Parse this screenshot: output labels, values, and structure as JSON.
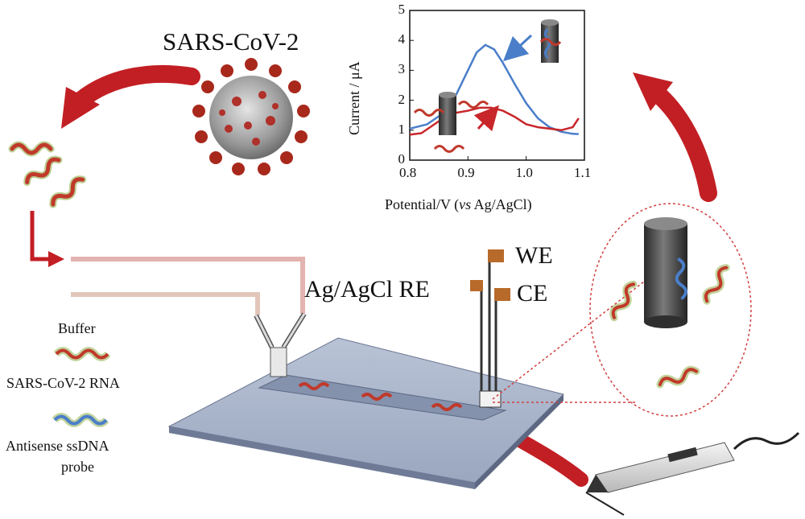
{
  "labels": {
    "virus": "SARS-CoV-2",
    "we": "WE",
    "ce": "CE",
    "re": "Ag/AgCl RE",
    "buffer": "Buffer",
    "rna": "SARS-CoV-2 RNA",
    "probe_line1": "Antisense ssDNA",
    "probe_line2": "probe"
  },
  "colors": {
    "arrow": "#c21f24",
    "blue_trace": "#4a7ec9",
    "red_trace": "#c8262a",
    "plate": "#a9b4c8",
    "channel": "#7d8aa6"
  },
  "icons": [
    "virus-icon",
    "rna-strand-icon",
    "electrode-cylinder-icon",
    "sensor-pen-icon",
    "y-connector-icon"
  ],
  "chart_data": {
    "type": "line",
    "xlabel_prefix": "Potential/V (",
    "xlabel_italic": "vs",
    "xlabel_suffix": " Ag/AgCl)",
    "ylabel": "Current / μA",
    "xlim": [
      0.8,
      1.1
    ],
    "ylim": [
      0,
      5
    ],
    "xticks": [
      "0.8",
      "0.9",
      "1.0",
      "1.1"
    ],
    "yticks": [
      "0",
      "1",
      "2",
      "3",
      "4",
      "5"
    ],
    "series": [
      {
        "color": "#4a7ec9",
        "x": [
          0.8,
          0.83,
          0.86,
          0.88,
          0.9,
          0.915,
          0.93,
          0.945,
          0.96,
          0.98,
          1.0,
          1.02,
          1.04,
          1.06,
          1.08,
          1.09
        ],
        "y": [
          1.05,
          1.2,
          1.6,
          2.2,
          3.0,
          3.6,
          3.85,
          3.7,
          3.25,
          2.55,
          1.9,
          1.4,
          1.1,
          0.95,
          0.88,
          0.87
        ]
      },
      {
        "color": "#c8262a",
        "x": [
          0.8,
          0.82,
          0.85,
          0.87,
          0.9,
          0.92,
          0.94,
          0.96,
          0.98,
          1.0,
          1.02,
          1.04,
          1.06,
          1.08,
          1.09
        ],
        "y": [
          0.85,
          0.9,
          1.3,
          1.55,
          1.65,
          1.75,
          1.75,
          1.65,
          1.45,
          1.2,
          1.1,
          1.05,
          1.0,
          1.1,
          1.4
        ]
      }
    ]
  }
}
